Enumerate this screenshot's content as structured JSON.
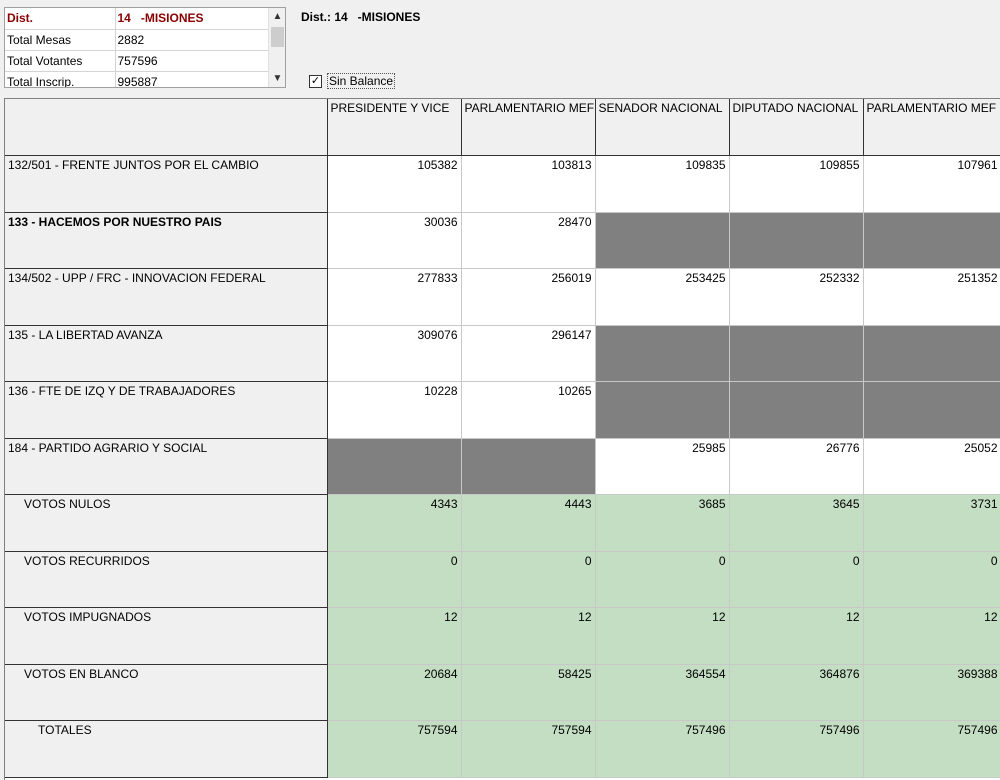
{
  "info": {
    "rows": [
      {
        "label": "Dist.",
        "value": "14   -MISIONES"
      },
      {
        "label": "Total Mesas",
        "value": "2882"
      },
      {
        "label": "Total Votantes",
        "value": "757596"
      },
      {
        "label": "Total Inscrip.",
        "value": "995887"
      }
    ]
  },
  "header_title": "Dist.: 14   -MISIONES",
  "checkbox": {
    "label": "Sin Balance",
    "checked": true
  },
  "columns": [
    "PRESIDENTE Y VICE",
    "PARLAMENTARIO MEF",
    "SENADOR NACIONAL",
    "DIPUTADO NACIONAL",
    "PARLAMENTARIO MEF"
  ],
  "rows": [
    {
      "label": "132/501 - FRENTE JUNTOS POR EL CAMBIO",
      "values": [
        "105382",
        "103813",
        "109835",
        "109855",
        "107961"
      ]
    },
    {
      "label": "133 - HACEMOS POR NUESTRO PAIS",
      "values": [
        "30036",
        "28470",
        null,
        null,
        null
      ]
    },
    {
      "label": "134/502 - UPP / FRC - INNOVACION FEDERAL",
      "values": [
        "277833",
        "256019",
        "253425",
        "252332",
        "251352"
      ]
    },
    {
      "label": "135 - LA LIBERTAD AVANZA",
      "values": [
        "309076",
        "296147",
        null,
        null,
        null
      ]
    },
    {
      "label": "136 - FTE DE IZQ Y DE TRABAJADORES",
      "values": [
        "10228",
        "10265",
        null,
        null,
        null
      ]
    },
    {
      "label": "184 - PARTIDO AGRARIO Y SOCIAL",
      "values": [
        null,
        null,
        "25985",
        "26776",
        "25052"
      ]
    },
    {
      "label": "VOTOS NULOS",
      "values": [
        "4343",
        "4443",
        "3685",
        "3645",
        "3731"
      ]
    },
    {
      "label": "VOTOS RECURRIDOS",
      "values": [
        "0",
        "0",
        "0",
        "0",
        "0"
      ]
    },
    {
      "label": "VOTOS IMPUGNADOS",
      "values": [
        "12",
        "12",
        "12",
        "12",
        "12"
      ]
    },
    {
      "label": "VOTOS EN BLANCO",
      "values": [
        "20684",
        "58425",
        "364554",
        "364876",
        "369388"
      ]
    },
    {
      "label": "TOTALES",
      "values": [
        "757594",
        "757594",
        "757496",
        "757496",
        "757496"
      ]
    }
  ],
  "colors": {
    "summary_bg": "#c3dec3",
    "na_bg": "#808080",
    "highlight": "#8b0000"
  }
}
